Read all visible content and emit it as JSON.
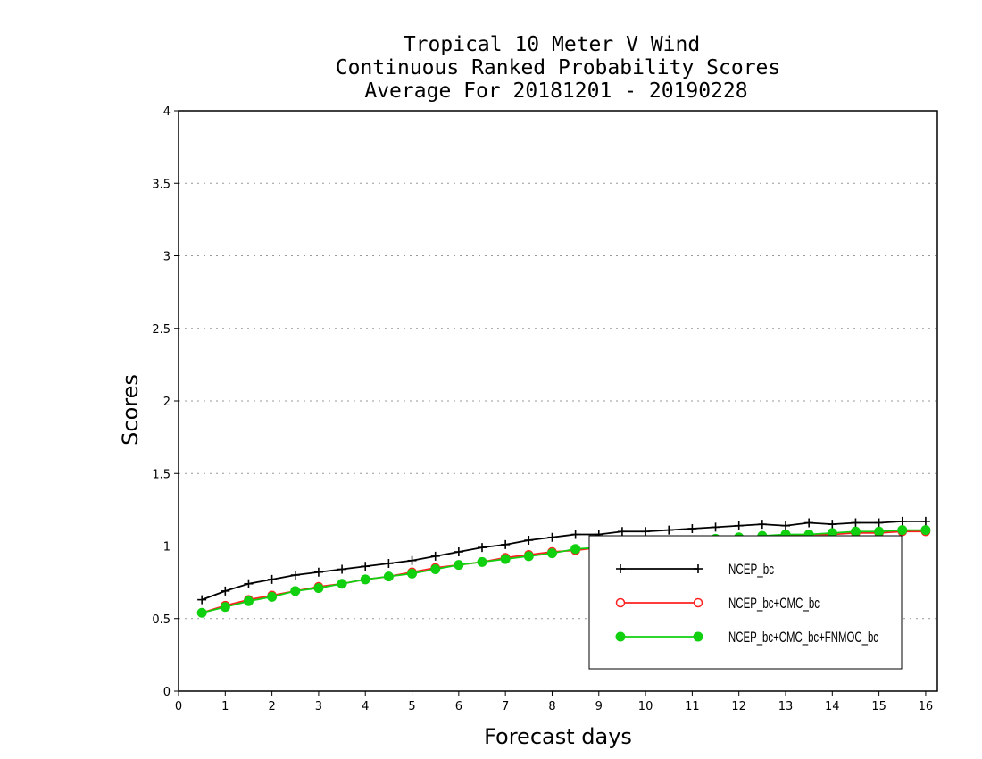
{
  "chart_data": {
    "type": "line",
    "title": "Tropical 10 Meter V Wind",
    "subtitle": "Continuous Ranked Probability Scores",
    "subtitle2": "Average For 20181201 - 20190228",
    "xlabel": "Forecast days",
    "ylabel": "Scores",
    "xlim": [
      0,
      16.25
    ],
    "ylim": [
      0,
      4
    ],
    "xticks": [
      0,
      1,
      2,
      3,
      4,
      5,
      6,
      7,
      8,
      9,
      10,
      11,
      12,
      13,
      14,
      15,
      16
    ],
    "yticks": [
      0,
      0.5,
      1,
      1.5,
      2,
      2.5,
      3,
      3.5,
      4
    ],
    "ytick_labels": [
      "0",
      "0.5",
      "1",
      "1.5",
      "2",
      "2.5",
      "3",
      "3.5",
      "4"
    ],
    "grid": "horizontal dotted",
    "legend_position": "bottom-right",
    "x": [
      0.5,
      1,
      1.5,
      2,
      2.5,
      3,
      3.5,
      4,
      4.5,
      5,
      5.5,
      6,
      6.5,
      7,
      7.5,
      8,
      8.5,
      9,
      9.5,
      10,
      10.5,
      11,
      11.5,
      12,
      12.5,
      13,
      13.5,
      14,
      14.5,
      15,
      15.5,
      16
    ],
    "series": [
      {
        "name": "NCEP_bc",
        "color": "#000000",
        "marker": "plus",
        "values": [
          0.63,
          0.69,
          0.74,
          0.77,
          0.8,
          0.82,
          0.84,
          0.86,
          0.88,
          0.9,
          0.93,
          0.96,
          0.99,
          1.01,
          1.04,
          1.06,
          1.08,
          1.08,
          1.1,
          1.1,
          1.11,
          1.12,
          1.13,
          1.14,
          1.15,
          1.14,
          1.16,
          1.15,
          1.16,
          1.16,
          1.17,
          1.17
        ]
      },
      {
        "name": "NCEP_bc+CMC_bc",
        "color": "#ff2020",
        "marker": "open-circle",
        "values": [
          0.54,
          0.59,
          0.63,
          0.66,
          0.69,
          0.72,
          0.74,
          0.77,
          0.79,
          0.82,
          0.85,
          0.87,
          0.89,
          0.92,
          0.94,
          0.96,
          0.97,
          0.99,
          1.0,
          1.01,
          1.02,
          1.03,
          1.04,
          1.05,
          1.06,
          1.07,
          1.08,
          1.08,
          1.09,
          1.09,
          1.1,
          1.1
        ]
      },
      {
        "name": "NCEP_bc+CMC_bc+FNMOC_bc",
        "color": "#10d010",
        "marker": "filled-circle",
        "values": [
          0.54,
          0.58,
          0.62,
          0.65,
          0.69,
          0.71,
          0.74,
          0.77,
          0.79,
          0.81,
          0.84,
          0.87,
          0.89,
          0.91,
          0.93,
          0.95,
          0.98,
          0.99,
          1.0,
          1.01,
          1.03,
          1.04,
          1.05,
          1.06,
          1.07,
          1.08,
          1.08,
          1.09,
          1.1,
          1.1,
          1.11,
          1.11
        ]
      }
    ]
  }
}
